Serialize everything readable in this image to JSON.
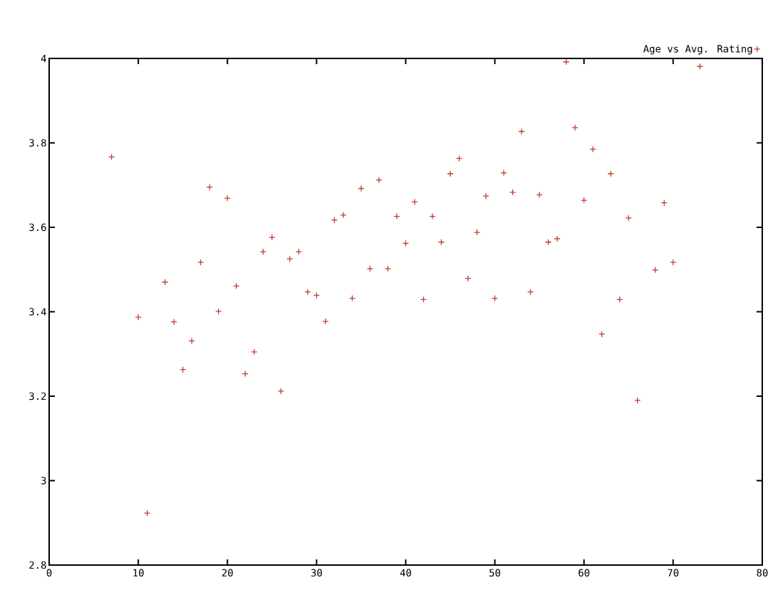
{
  "chart_data": {
    "type": "scatter",
    "x": [
      7,
      10,
      11,
      13,
      14,
      15,
      16,
      17,
      18,
      19,
      20,
      21,
      22,
      23,
      24,
      25,
      26,
      27,
      28,
      29,
      30,
      31,
      32,
      33,
      34,
      35,
      36,
      37,
      38,
      39,
      40,
      41,
      42,
      43,
      44,
      45,
      46,
      47,
      48,
      49,
      50,
      51,
      52,
      53,
      54,
      55,
      56,
      57,
      58,
      59,
      60,
      61,
      62,
      63,
      64,
      65,
      66,
      68,
      69,
      70,
      73
    ],
    "series": [
      {
        "name": "Age vs Avg. Rating",
        "color": "#c8382c",
        "values": [
          3.767,
          3.387,
          2.923,
          3.47,
          3.376,
          3.263,
          3.331,
          3.517,
          3.695,
          3.401,
          3.669,
          3.461,
          3.253,
          3.305,
          3.542,
          3.576,
          3.212,
          3.525,
          3.542,
          3.447,
          3.439,
          3.377,
          3.617,
          3.629,
          3.432,
          3.692,
          3.502,
          3.712,
          3.502,
          3.626,
          3.562,
          3.66,
          3.429,
          3.626,
          3.565,
          3.727,
          3.763,
          3.479,
          3.588,
          3.674,
          3.432,
          3.729,
          3.683,
          3.827,
          3.447,
          3.677,
          3.565,
          3.573,
          3.992,
          3.836,
          3.664,
          3.785,
          3.347,
          3.727,
          3.429,
          3.622,
          3.19,
          3.499,
          3.658,
          3.517,
          3.981
        ]
      }
    ],
    "xlim": [
      0,
      80
    ],
    "xticks": [
      0,
      10,
      20,
      30,
      40,
      50,
      60,
      70,
      80
    ],
    "ylim": [
      2.8,
      4
    ],
    "yticks": [
      2.8,
      3,
      3.2,
      3.4,
      3.6,
      3.8,
      4
    ],
    "marker": "cross",
    "legend": "top right"
  }
}
